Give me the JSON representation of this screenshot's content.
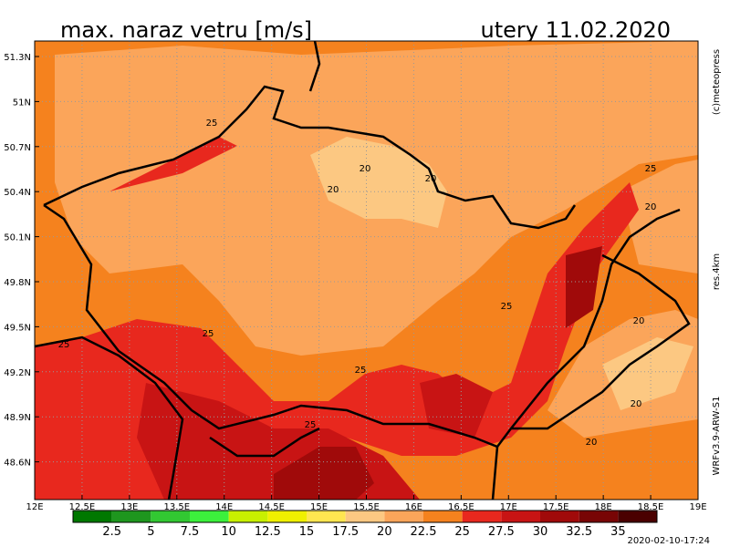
{
  "header": {
    "title": "max. naraz vetru [m/s]",
    "date": "utery 11.02.2020"
  },
  "map": {
    "lon_labels": [
      "12E",
      "12.5E",
      "13E",
      "13.5E",
      "14E",
      "14.5E",
      "15E",
      "15.5E",
      "16E",
      "16.5E",
      "17E",
      "17.5E",
      "18E",
      "18.5E",
      "19E"
    ],
    "lat_labels": [
      "51.3N",
      "51N",
      "50.7N",
      "50.4N",
      "50.1N",
      "49.8N",
      "49.5N",
      "49.2N",
      "48.9N",
      "48.6N"
    ],
    "contour_labels": [
      "25",
      "20",
      "20",
      "20",
      "25",
      "20",
      "25",
      "25",
      "25",
      "20",
      "25",
      "20",
      "20",
      "25"
    ]
  },
  "colorbar": {
    "labels": [
      "2.5",
      "5",
      "7.5",
      "10",
      "12.5",
      "15",
      "17.5",
      "20",
      "22.5",
      "25",
      "27.5",
      "30",
      "32.5",
      "35"
    ],
    "colors": [
      "#007800",
      "#1e961e",
      "#32c832",
      "#3cf03c",
      "#c8f000",
      "#f0f000",
      "#ffe650",
      "#fcc882",
      "#fba55a",
      "#f5821e",
      "#e8281e",
      "#c81414",
      "#a00a0a",
      "#780505",
      "#4a0000"
    ]
  },
  "side": {
    "copyright": "(c)meteopress",
    "resolution": "res.4km",
    "model": "WRFv3.9-ARW-S1",
    "timestamp": "2020-02-10-17:24"
  }
}
